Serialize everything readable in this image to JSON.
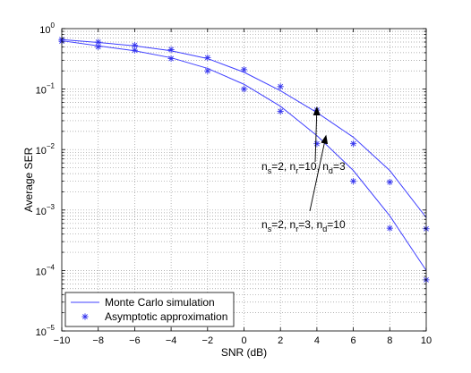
{
  "chart_data": {
    "type": "line",
    "title": "",
    "xlabel": "SNR (dB)",
    "ylabel": "Average SER",
    "xlim": [
      -10,
      10
    ],
    "ylim": [
      1e-05,
      1
    ],
    "yscale": "log",
    "grid": true,
    "x_ticks": [
      -10,
      -8,
      -6,
      -4,
      -2,
      0,
      2,
      4,
      6,
      8,
      10
    ],
    "x_tick_labels": [
      "−10",
      "−8",
      "−6",
      "−4",
      "−2",
      "0",
      "2",
      "4",
      "6",
      "8",
      "10"
    ],
    "y_ticks": [
      {
        "value": 1,
        "base": "10",
        "exp": "0"
      },
      {
        "value": 0.1,
        "base": "10",
        "exp": "−1"
      },
      {
        "value": 0.01,
        "base": "10",
        "exp": "−2"
      },
      {
        "value": 0.001,
        "base": "10",
        "exp": "−3"
      },
      {
        "value": 0.0001,
        "base": "10",
        "exp": "−4"
      },
      {
        "value": 1e-05,
        "base": "10",
        "exp": "−5"
      }
    ],
    "legend": {
      "placement": "bottom-left",
      "entries": [
        {
          "label": "Monte Carlo simulation",
          "marker": "line"
        },
        {
          "label": "Asymptotic approximation",
          "marker": "asterisk"
        }
      ]
    },
    "colors": {
      "series": "#4040ff",
      "markers": "#3333ee",
      "grid": "#999999",
      "axes": "#000000"
    },
    "x": [
      -10,
      -8,
      -6,
      -4,
      -2,
      0,
      2,
      4,
      6,
      8,
      10
    ],
    "series": [
      {
        "id": "upper",
        "simulation": [
          0.66,
          0.59,
          0.52,
          0.43,
          0.32,
          0.19,
          0.094,
          0.041,
          0.016,
          0.0045,
          0.00075
        ],
        "asymptotic": [
          0.66,
          0.6,
          0.53,
          0.45,
          0.33,
          0.21,
          0.11,
          0.045,
          0.0125,
          0.0029,
          0.00049
        ]
      },
      {
        "id": "lower",
        "simulation": [
          0.63,
          0.52,
          0.43,
          0.33,
          0.22,
          0.12,
          0.052,
          0.017,
          0.0045,
          0.0008,
          0.0001
        ],
        "asymptotic": [
          0.62,
          0.5,
          0.44,
          0.32,
          0.2,
          0.1,
          0.043,
          0.0125,
          0.003,
          0.0005,
          7e-05
        ]
      }
    ],
    "annotations": [
      {
        "id": "upper",
        "text": [
          {
            "t": "n",
            "s": ""
          },
          {
            "t": "s",
            "s": "sub"
          },
          {
            "t": "=2, n",
            "s": ""
          },
          {
            "t": "r",
            "s": "sub"
          },
          {
            "t": "=10, n",
            "s": ""
          },
          {
            "t": "d",
            "s": "sub"
          },
          {
            "t": "=3",
            "s": ""
          }
        ],
        "arrow_to": {
          "x": 4,
          "y": 0.05
        }
      },
      {
        "id": "lower",
        "text": [
          {
            "t": "n",
            "s": ""
          },
          {
            "t": "s",
            "s": "sub"
          },
          {
            "t": "=2, n",
            "s": ""
          },
          {
            "t": "r",
            "s": "sub"
          },
          {
            "t": "=3, n",
            "s": ""
          },
          {
            "t": "d",
            "s": "sub"
          },
          {
            "t": "=10",
            "s": ""
          }
        ],
        "arrow_to": {
          "x": 4.5,
          "y": 0.017
        }
      }
    ]
  }
}
